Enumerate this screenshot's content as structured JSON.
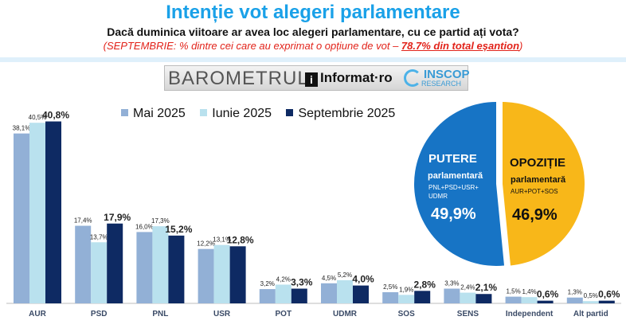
{
  "header": {
    "title": "Intenție vot alegeri parlamentare",
    "question": "Dacă duminica viitoare ar avea loc alegeri parlamentare, cu ce partid ați vota?",
    "note_prefix": "(SEPTEMBRIE: % dintre cei care au exprimat o opțiune de vot – ",
    "note_highlight": "78.7% din total eșantion",
    "note_suffix": ")"
  },
  "logos": {
    "barometrul": "BAROMETRUL",
    "informat": "Informat",
    "informat_tld": "·ro",
    "informat_mark": "i",
    "inscop": "INSCOP",
    "inscop_sub": "RESEARCH"
  },
  "colors": {
    "mai": "#92b0d6",
    "iunie": "#b9e1ee",
    "septembrie": "#0e2a63",
    "putere": "#1774c5",
    "opozitie": "#f8b719"
  },
  "chart_data": [
    {
      "type": "bar",
      "categories": [
        "AUR",
        "PSD",
        "PNL",
        "USR",
        "POT",
        "UDMR",
        "SOS",
        "SENS",
        "Independent",
        "Alt partid"
      ],
      "series": [
        {
          "name": "Mai 2025",
          "values": [
            38.1,
            17.4,
            16.0,
            12.2,
            3.2,
            4.5,
            2.5,
            3.3,
            1.5,
            1.3
          ],
          "labels": [
            "38,1%",
            "17,4%",
            "16,0%",
            "12,2%",
            "3,2%",
            "4,5%",
            "2,5%",
            "3,3%",
            "1,5%",
            "1,3%"
          ]
        },
        {
          "name": "Iunie 2025",
          "values": [
            40.5,
            13.7,
            17.3,
            13.1,
            4.2,
            5.2,
            1.9,
            2.4,
            1.4,
            0.5
          ],
          "labels": [
            "40,5%",
            "13,7%",
            "17,3%",
            "13,1%",
            "4,2%",
            "5,2%",
            "1,9%",
            "2,4%",
            "1,4%",
            "0,5%"
          ]
        },
        {
          "name": "Septembrie 2025",
          "values": [
            40.8,
            17.9,
            15.2,
            12.8,
            3.3,
            4.0,
            2.8,
            2.1,
            0.6,
            0.6
          ],
          "labels": [
            "40,8%",
            "17,9%",
            "15,2%",
            "12,8%",
            "3,3%",
            "4,0%",
            "2,8%",
            "2,1%",
            "0,6%",
            "0,6%"
          ]
        }
      ],
      "ylim": [
        0,
        45
      ],
      "legend": "top"
    },
    {
      "type": "pie",
      "slices": [
        {
          "name": "PUTERE",
          "sub": "parlamentară",
          "detail": "PNL+PSD+USR+UDMR",
          "value": 49.9,
          "label": "49,9%"
        },
        {
          "name": "OPOZIȚIE",
          "sub": "parlamentară",
          "detail": "AUR+POT+SOS",
          "value": 46.9,
          "label": "46,9%"
        }
      ]
    }
  ]
}
